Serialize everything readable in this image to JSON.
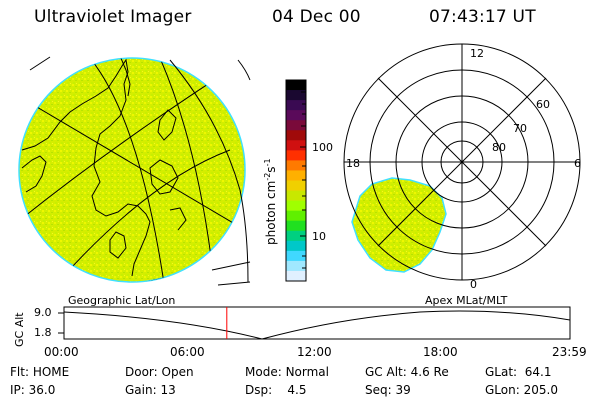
{
  "header": {
    "title": "Ultraviolet Imager",
    "date": "04 Dec 00",
    "time": "07:43:17 UT"
  },
  "colorbar": {
    "unit": "photon cm",
    "unit_sup": "-2",
    "unit_mid": "s",
    "unit_sup2": "-1",
    "ticks": [
      "100",
      "10"
    ],
    "colors": [
      "#000000",
      "#1a0830",
      "#3a0a52",
      "#5a0a5a",
      "#7a0a3a",
      "#a00a0a",
      "#d01010",
      "#ff3000",
      "#ff7a00",
      "#ffb000",
      "#f0d000",
      "#c8e800",
      "#a0ff00",
      "#60f000",
      "#20e020",
      "#00d080",
      "#00c8c8",
      "#40d8ff",
      "#a0e8ff",
      "#e0f0ff"
    ]
  },
  "polar": {
    "mlt_labels": [
      "12",
      "18",
      "6",
      "0"
    ],
    "mlat_labels": [
      "60",
      "70",
      "80"
    ]
  },
  "timeline": {
    "left_label": "Geographic Lat/Lon",
    "right_label": "Apex  MLat/MLT",
    "y_axis_label": "GC Alt",
    "y_ticks": [
      "9.0",
      "1.8"
    ],
    "x_ticks": [
      "00:00",
      "06:00",
      "12:00",
      "18:00",
      "23:59"
    ],
    "current_time_hours": 7.72,
    "marker_color": "#ff0000"
  },
  "footer": {
    "row1": [
      {
        "label": "Flt:",
        "value": "HOME"
      },
      {
        "label": "Door:",
        "value": "Open"
      },
      {
        "label": "Mode:",
        "value": "Normal"
      },
      {
        "label": "GC Alt:",
        "value": "4.6 Re"
      },
      {
        "label": "GLat:",
        "value": "64.1"
      }
    ],
    "row2": [
      {
        "label": "IP:",
        "value": "36.0"
      },
      {
        "label": "Gain:",
        "value": "13"
      },
      {
        "label": "Dsp:",
        "value": "4.5"
      },
      {
        "label": "Seq:",
        "value": "39"
      },
      {
        "label": "GLon:",
        "value": "205.0"
      }
    ]
  },
  "colors": {
    "aurora_fill": "#d8f000",
    "aurora_edge": "#40e0ff"
  }
}
